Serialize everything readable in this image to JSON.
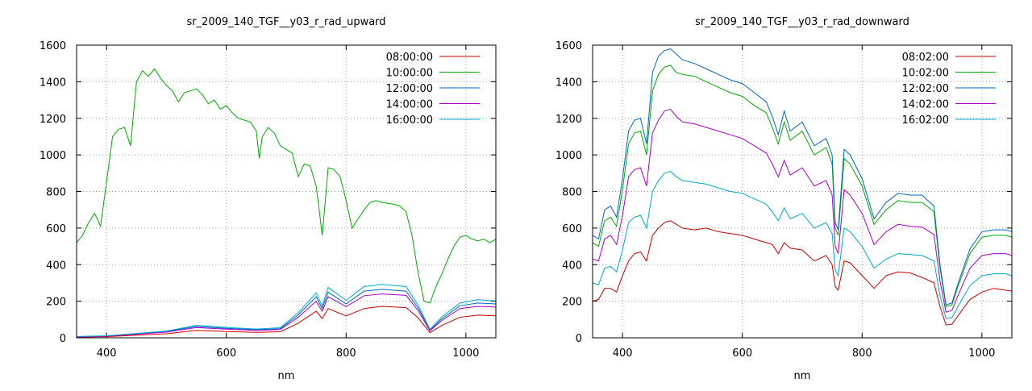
{
  "chart_data": [
    {
      "type": "line",
      "title": "sr_2009_140_TGF__y03_r_rad_upward",
      "xlabel": "nm",
      "ylabel": "",
      "xlim": [
        350,
        1050
      ],
      "ylim": [
        0,
        1600
      ],
      "xticks": [
        400,
        600,
        800,
        1000
      ],
      "yticks": [
        0,
        200,
        400,
        600,
        800,
        1000,
        1200,
        1400,
        1600
      ],
      "grid": true,
      "legend_position": "top-right",
      "series": [
        {
          "name": "08:00:00",
          "color": "#cc0000",
          "x": [
            350,
            400,
            450,
            500,
            550,
            600,
            650,
            690,
            720,
            750,
            760,
            770,
            800,
            830,
            860,
            900,
            920,
            940,
            960,
            990,
            1020,
            1050
          ],
          "y": [
            3,
            6,
            14,
            22,
            40,
            34,
            30,
            33,
            80,
            145,
            105,
            160,
            120,
            160,
            172,
            165,
            110,
            28,
            68,
            112,
            124,
            120
          ]
        },
        {
          "name": "10:00:00",
          "color": "#00aa00",
          "x": [
            350,
            360,
            370,
            380,
            390,
            400,
            410,
            420,
            430,
            440,
            450,
            460,
            470,
            480,
            490,
            500,
            510,
            520,
            530,
            540,
            550,
            560,
            570,
            580,
            590,
            600,
            610,
            620,
            630,
            640,
            650,
            655,
            660,
            670,
            680,
            690,
            700,
            710,
            720,
            730,
            740,
            750,
            755,
            760,
            765,
            770,
            780,
            790,
            800,
            810,
            820,
            830,
            840,
            850,
            860,
            870,
            880,
            890,
            900,
            910,
            920,
            930,
            940,
            950,
            960,
            970,
            980,
            990,
            1000,
            1010,
            1020,
            1030,
            1040,
            1050
          ],
          "y": [
            520,
            560,
            630,
            680,
            610,
            850,
            1100,
            1140,
            1150,
            1050,
            1400,
            1460,
            1430,
            1470,
            1420,
            1380,
            1350,
            1290,
            1340,
            1350,
            1360,
            1330,
            1280,
            1300,
            1250,
            1270,
            1230,
            1200,
            1190,
            1180,
            1130,
            980,
            1100,
            1150,
            1120,
            1050,
            1030,
            1010,
            880,
            950,
            940,
            830,
            700,
            560,
            740,
            930,
            920,
            880,
            750,
            600,
            650,
            700,
            740,
            750,
            740,
            735,
            730,
            720,
            690,
            560,
            360,
            200,
            190,
            280,
            350,
            430,
            500,
            550,
            560,
            540,
            530,
            540,
            520,
            540
          ]
        },
        {
          "name": "12:00:00",
          "color": "#0066cc",
          "x": [
            350,
            400,
            450,
            500,
            550,
            600,
            650,
            690,
            720,
            750,
            760,
            770,
            800,
            830,
            860,
            900,
            920,
            940,
            960,
            990,
            1020,
            1050
          ],
          "y": [
            6,
            10,
            22,
            34,
            62,
            52,
            44,
            50,
            125,
            225,
            160,
            250,
            185,
            255,
            265,
            255,
            165,
            42,
            105,
            175,
            190,
            185
          ]
        },
        {
          "name": "14:00:00",
          "color": "#aa00cc",
          "x": [
            350,
            400,
            450,
            500,
            550,
            600,
            650,
            690,
            720,
            750,
            760,
            770,
            800,
            830,
            860,
            900,
            920,
            940,
            960,
            990,
            1020,
            1050
          ],
          "y": [
            5,
            9,
            20,
            31,
            56,
            47,
            40,
            45,
            112,
            200,
            145,
            225,
            170,
            230,
            240,
            232,
            150,
            38,
            95,
            160,
            172,
            168
          ]
        },
        {
          "name": "16:00:00",
          "color": "#00aacc",
          "x": [
            350,
            400,
            450,
            500,
            550,
            600,
            650,
            690,
            720,
            750,
            760,
            770,
            800,
            830,
            860,
            900,
            920,
            940,
            960,
            990,
            1020,
            1050
          ],
          "y": [
            7,
            11,
            24,
            37,
            68,
            57,
            48,
            55,
            137,
            245,
            175,
            275,
            205,
            280,
            292,
            280,
            180,
            46,
            115,
            190,
            208,
            202
          ]
        }
      ]
    },
    {
      "type": "line",
      "title": "sr_2009_140_TGF__y03_r_rad_downward",
      "xlabel": "nm",
      "ylabel": "",
      "xlim": [
        350,
        1050
      ],
      "ylim": [
        0,
        1600
      ],
      "xticks": [
        400,
        600,
        800,
        1000
      ],
      "yticks": [
        0,
        200,
        400,
        600,
        800,
        1000,
        1200,
        1400,
        1600
      ],
      "grid": true,
      "legend_position": "top-right",
      "series": [
        {
          "name": "08:02:00",
          "color": "#cc0000",
          "x": [
            350,
            360,
            370,
            380,
            390,
            400,
            410,
            420,
            430,
            440,
            450,
            460,
            470,
            480,
            490,
            500,
            520,
            540,
            560,
            580,
            600,
            620,
            640,
            650,
            660,
            670,
            680,
            700,
            720,
            740,
            750,
            755,
            760,
            770,
            780,
            800,
            820,
            840,
            860,
            880,
            900,
            920,
            930,
            940,
            950,
            960,
            980,
            1000,
            1020,
            1040,
            1050
          ],
          "y": [
            200,
            210,
            270,
            270,
            250,
            340,
            420,
            460,
            470,
            420,
            560,
            600,
            630,
            640,
            620,
            600,
            590,
            600,
            580,
            570,
            560,
            540,
            520,
            510,
            460,
            520,
            490,
            480,
            420,
            450,
            400,
            280,
            260,
            420,
            410,
            340,
            270,
            340,
            360,
            355,
            330,
            300,
            170,
            70,
            75,
            120,
            210,
            250,
            270,
            260,
            255
          ]
        },
        {
          "name": "10:02:00",
          "color": "#00aa00",
          "x": [
            350,
            360,
            370,
            380,
            390,
            400,
            410,
            420,
            430,
            440,
            450,
            460,
            470,
            480,
            490,
            500,
            520,
            540,
            560,
            580,
            600,
            620,
            640,
            650,
            660,
            670,
            680,
            700,
            720,
            740,
            750,
            755,
            760,
            770,
            780,
            800,
            820,
            840,
            860,
            880,
            900,
            920,
            930,
            940,
            950,
            960,
            980,
            1000,
            1020,
            1040,
            1050
          ],
          "y": [
            520,
            500,
            640,
            660,
            610,
            810,
            1060,
            1120,
            1130,
            1000,
            1350,
            1440,
            1480,
            1490,
            1450,
            1440,
            1430,
            1400,
            1370,
            1340,
            1320,
            1270,
            1230,
            1150,
            1060,
            1180,
            1080,
            1130,
            1000,
            1040,
            950,
            600,
            560,
            980,
            950,
            830,
            620,
            700,
            750,
            740,
            740,
            690,
            380,
            170,
            180,
            280,
            460,
            550,
            560,
            560,
            550
          ]
        },
        {
          "name": "12:02:00",
          "color": "#0066cc",
          "x": [
            350,
            360,
            370,
            380,
            390,
            400,
            410,
            420,
            430,
            440,
            450,
            460,
            470,
            480,
            490,
            500,
            520,
            540,
            560,
            580,
            600,
            620,
            640,
            650,
            660,
            670,
            680,
            700,
            720,
            740,
            750,
            755,
            760,
            770,
            780,
            800,
            820,
            840,
            860,
            880,
            900,
            920,
            930,
            940,
            950,
            960,
            980,
            1000,
            1020,
            1040,
            1050
          ],
          "y": [
            560,
            540,
            700,
            720,
            660,
            870,
            1130,
            1190,
            1200,
            1060,
            1450,
            1540,
            1570,
            1580,
            1550,
            1520,
            1500,
            1470,
            1440,
            1410,
            1390,
            1340,
            1290,
            1210,
            1110,
            1240,
            1130,
            1180,
            1050,
            1090,
            1000,
            630,
            590,
            1030,
            1000,
            870,
            650,
            740,
            790,
            780,
            780,
            720,
            400,
            180,
            190,
            295,
            485,
            580,
            590,
            590,
            580
          ]
        },
        {
          "name": "14:02:00",
          "color": "#aa00cc",
          "x": [
            350,
            360,
            370,
            380,
            390,
            400,
            410,
            420,
            430,
            440,
            450,
            460,
            470,
            480,
            490,
            500,
            520,
            540,
            560,
            580,
            600,
            620,
            640,
            650,
            660,
            670,
            680,
            700,
            720,
            740,
            750,
            755,
            760,
            770,
            780,
            800,
            820,
            840,
            860,
            880,
            900,
            920,
            930,
            940,
            950,
            960,
            980,
            1000,
            1020,
            1040,
            1050
          ],
          "y": [
            430,
            420,
            540,
            560,
            510,
            670,
            880,
            920,
            930,
            830,
            1120,
            1190,
            1240,
            1250,
            1210,
            1180,
            1170,
            1150,
            1130,
            1110,
            1090,
            1050,
            1010,
            950,
            880,
            970,
            890,
            930,
            830,
            860,
            780,
            500,
            460,
            810,
            780,
            680,
            510,
            580,
            620,
            610,
            605,
            565,
            310,
            140,
            150,
            230,
            380,
            450,
            460,
            460,
            450
          ]
        },
        {
          "name": "16:02:00",
          "color": "#00aacc",
          "x": [
            350,
            360,
            370,
            380,
            390,
            400,
            410,
            420,
            430,
            440,
            450,
            460,
            470,
            480,
            490,
            500,
            520,
            540,
            560,
            580,
            600,
            620,
            640,
            650,
            660,
            670,
            680,
            700,
            720,
            740,
            750,
            755,
            760,
            770,
            780,
            800,
            820,
            840,
            860,
            880,
            900,
            920,
            930,
            940,
            950,
            960,
            980,
            1000,
            1020,
            1040,
            1050
          ],
          "y": [
            300,
            290,
            380,
            390,
            360,
            480,
            630,
            660,
            670,
            600,
            800,
            860,
            900,
            910,
            880,
            860,
            850,
            840,
            820,
            800,
            790,
            760,
            730,
            690,
            640,
            710,
            650,
            680,
            600,
            630,
            570,
            370,
            340,
            600,
            580,
            500,
            380,
            430,
            460,
            455,
            450,
            420,
            230,
            105,
            110,
            170,
            285,
            340,
            350,
            350,
            340
          ]
        }
      ]
    }
  ]
}
